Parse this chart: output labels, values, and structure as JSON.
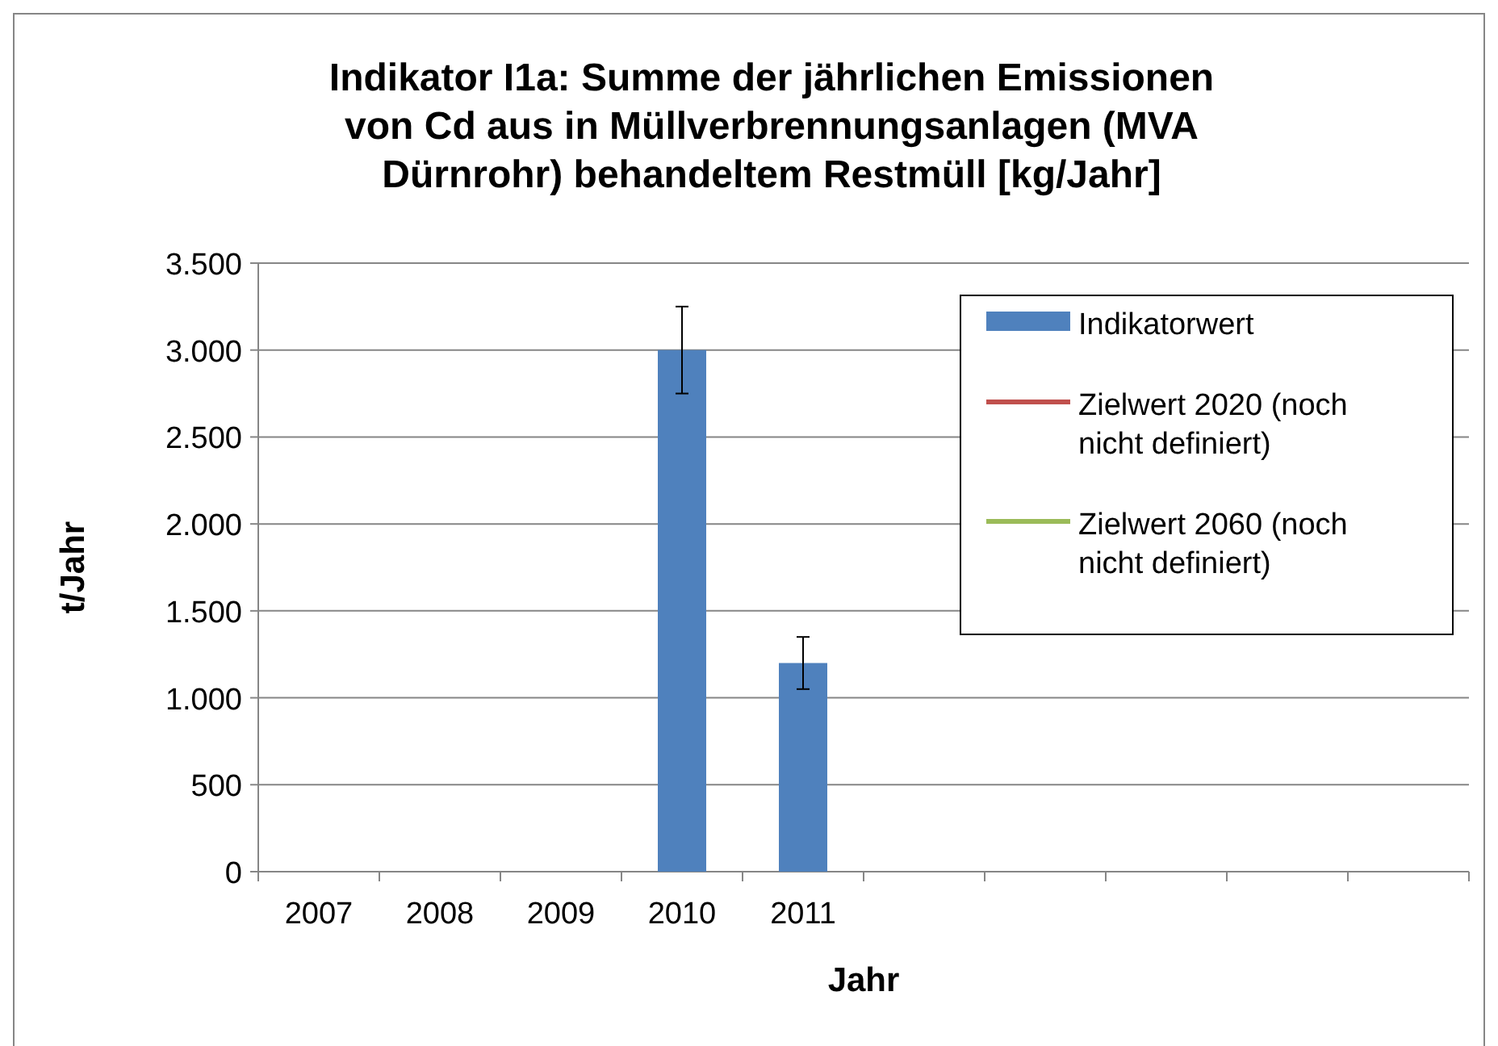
{
  "chart_data": {
    "type": "bar",
    "title": "Indikator I1a: Summe der jährlichen Emissionen von Cd aus in Müllverbrennungsanlagen (MVA Dürnrohr) behandeltem Restmüll [kg/Jahr]",
    "xlabel": "Jahr",
    "ylabel": "t/Jahr",
    "categories": [
      "2007",
      "2008",
      "2009",
      "2010",
      "2011",
      null,
      null,
      null,
      null,
      null
    ],
    "series": [
      {
        "name": "Indikatorwert",
        "color": "#4f81bd",
        "values": [
          null,
          null,
          null,
          3000,
          1200,
          null,
          null,
          null,
          null,
          null
        ],
        "errors": [
          null,
          null,
          null,
          250,
          150,
          null,
          null,
          null,
          null,
          null
        ]
      },
      {
        "name": "Zielwert 2020 (noch nicht definiert)",
        "type": "line",
        "color": "#c0504d",
        "values": [
          null,
          null,
          null,
          null,
          null,
          null,
          null,
          null,
          null,
          null
        ]
      },
      {
        "name": "Zielwert 2060 (noch nicht definiert)",
        "type": "line",
        "color": "#9bbb59",
        "values": [
          null,
          null,
          null,
          null,
          null,
          null,
          null,
          null,
          null,
          null
        ]
      }
    ],
    "ylim": [
      0,
      3500
    ],
    "yticks": [
      {
        "value": 0,
        "label": "0"
      },
      {
        "value": 500,
        "label": "500"
      },
      {
        "value": 1000,
        "label": "1.000"
      },
      {
        "value": 1500,
        "label": "1.500"
      },
      {
        "value": 2000,
        "label": "2.000"
      },
      {
        "value": 2500,
        "label": "2.500"
      },
      {
        "value": 3000,
        "label": "3.000"
      },
      {
        "value": 3500,
        "label": "3.500"
      }
    ],
    "grid": "y",
    "legend": "top right"
  }
}
